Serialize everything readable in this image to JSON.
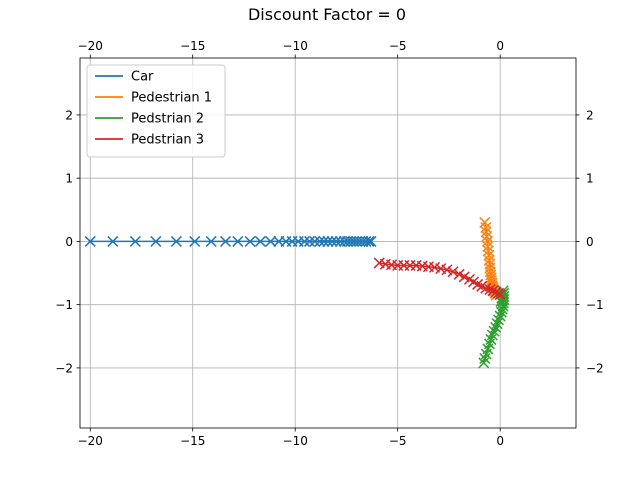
{
  "chart_data": {
    "type": "scatter",
    "title": "Discount Factor = 0",
    "xlabel": "",
    "ylabel": "",
    "xlim": [
      -20.5,
      3.7
    ],
    "ylim": [
      -2.95,
      2.9
    ],
    "xticks": [
      -20,
      -15,
      -10,
      -5,
      0
    ],
    "xtick_labels": [
      "−20",
      "−15",
      "−10",
      "−5",
      "0"
    ],
    "yticks": [
      -2,
      -1,
      0,
      1,
      2
    ],
    "ytick_labels": [
      "−2",
      "−1",
      "0",
      "1",
      "2"
    ],
    "grid": true,
    "ticks_on_top_and_right": true,
    "marker": "x",
    "legend": {
      "placement": "upper-left"
    },
    "series": [
      {
        "name": "Car",
        "color": "#1f77b4",
        "x": [
          -20.0,
          -18.9,
          -17.8,
          -16.8,
          -15.8,
          -14.9,
          -14.1,
          -13.4,
          -12.8,
          -12.2,
          -11.7,
          -11.2,
          -10.8,
          -10.45,
          -10.15,
          -9.85,
          -9.55,
          -9.3,
          -9.05,
          -8.8,
          -8.6,
          -8.4,
          -8.2,
          -8.0,
          -7.8,
          -7.6,
          -7.45,
          -7.3,
          -7.15,
          -7.0,
          -6.85,
          -6.7,
          -6.55,
          -6.4,
          -6.3
        ],
        "y": [
          0,
          0,
          0,
          0,
          0,
          0,
          0,
          0,
          0,
          0,
          0,
          0,
          0,
          0,
          0,
          0,
          0,
          0,
          0,
          0,
          0,
          0,
          0,
          0,
          0,
          0,
          0,
          0,
          0,
          0,
          0,
          0,
          0,
          0,
          0
        ]
      },
      {
        "name": "Pedestrian 1",
        "color": "#ff7f0e",
        "x": [
          -0.75,
          -0.7,
          -0.68,
          -0.65,
          -0.62,
          -0.6,
          -0.58,
          -0.55,
          -0.53,
          -0.5,
          -0.5,
          -0.48,
          -0.46,
          -0.44,
          -0.42,
          -0.4,
          -0.38,
          -0.35,
          -0.32,
          -0.28,
          -0.24,
          -0.2
        ],
        "y": [
          0.3,
          0.22,
          0.15,
          0.08,
          0.0,
          -0.08,
          -0.15,
          -0.22,
          -0.3,
          -0.36,
          -0.42,
          -0.48,
          -0.53,
          -0.58,
          -0.62,
          -0.66,
          -0.7,
          -0.73,
          -0.76,
          -0.79,
          -0.82,
          -0.85
        ]
      },
      {
        "name": "Pedstrian 2",
        "color": "#2ca02c",
        "x": [
          -0.8,
          -0.75,
          -0.68,
          -0.6,
          -0.52,
          -0.45,
          -0.38,
          -0.3,
          -0.22,
          -0.15,
          -0.08,
          0.0,
          0.06,
          0.1,
          0.14,
          0.16,
          0.18,
          0.18,
          0.17,
          0.15,
          0.12,
          0.08,
          0.04
        ],
        "y": [
          -1.92,
          -1.85,
          -1.78,
          -1.7,
          -1.62,
          -1.55,
          -1.48,
          -1.42,
          -1.36,
          -1.3,
          -1.24,
          -1.18,
          -1.12,
          -1.07,
          -1.02,
          -0.97,
          -0.92,
          -0.87,
          -0.82,
          -0.78,
          -0.84,
          -0.9,
          -0.95
        ]
      },
      {
        "name": "Pedstrian 3",
        "color": "#d62728",
        "x": [
          -5.9,
          -5.6,
          -5.3,
          -5.0,
          -4.7,
          -4.4,
          -4.1,
          -3.8,
          -3.5,
          -3.2,
          -2.9,
          -2.6,
          -2.3,
          -2.0,
          -1.75,
          -1.5,
          -1.3,
          -1.1,
          -0.9,
          -0.7,
          -0.5,
          -0.35,
          -0.2,
          -0.08,
          0.0
        ],
        "y": [
          -0.34,
          -0.36,
          -0.37,
          -0.38,
          -0.38,
          -0.38,
          -0.38,
          -0.39,
          -0.4,
          -0.41,
          -0.43,
          -0.45,
          -0.48,
          -0.52,
          -0.56,
          -0.6,
          -0.64,
          -0.68,
          -0.71,
          -0.74,
          -0.76,
          -0.78,
          -0.8,
          -0.82,
          -0.84
        ]
      }
    ]
  }
}
